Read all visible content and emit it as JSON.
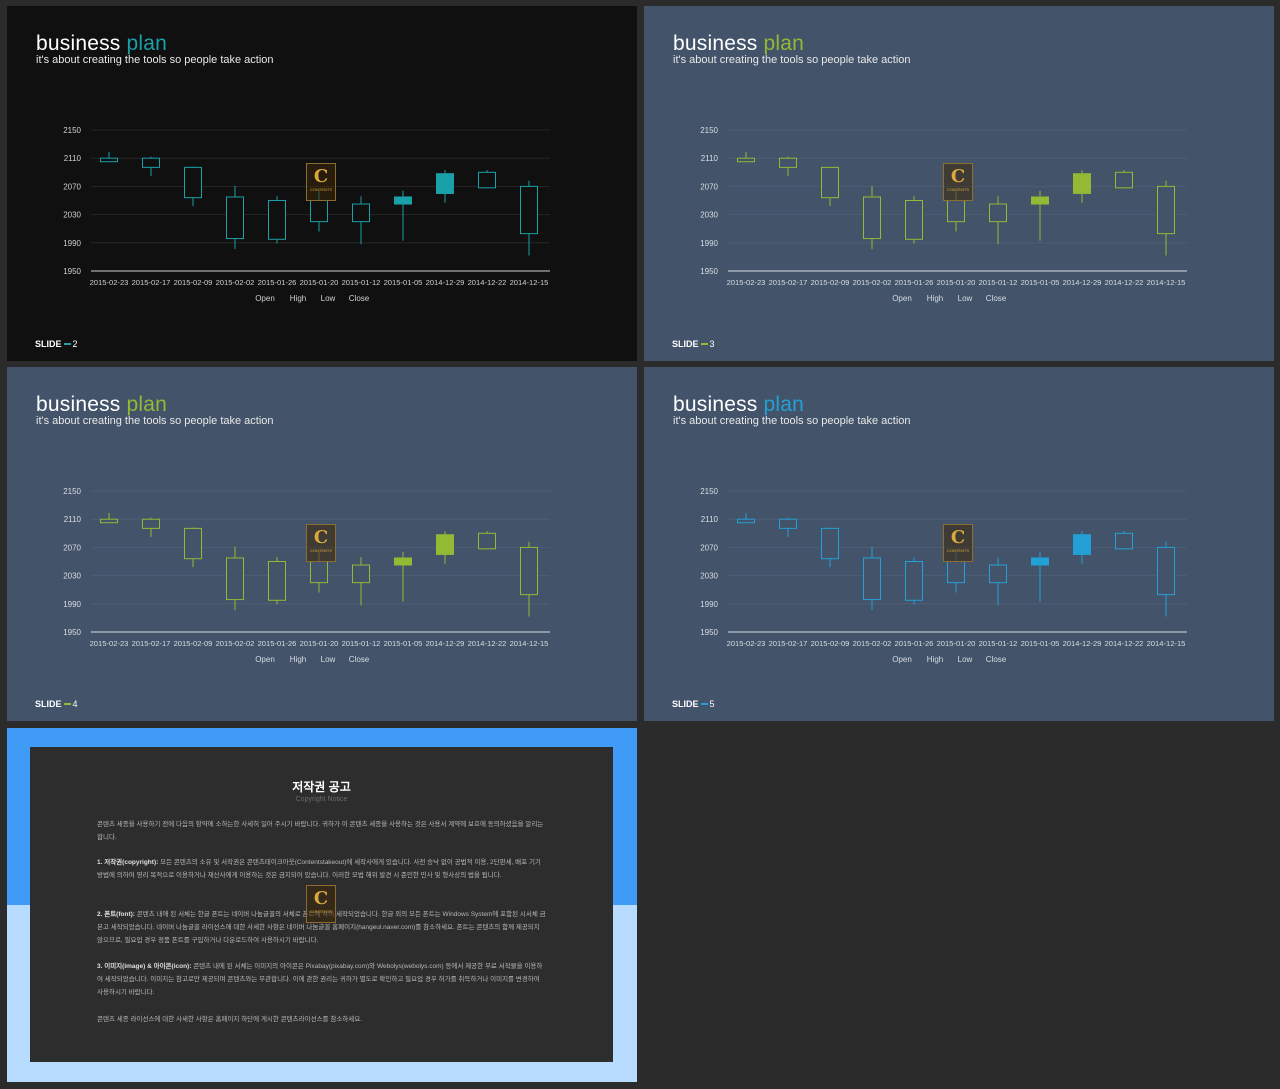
{
  "slides": [
    {
      "theme": {
        "bg": "#101010",
        "accent": "#1aa0a8",
        "text": "#ffffff",
        "axis": "#d0d0d0",
        "grid": "#2a2a2a"
      },
      "title_word1": "business",
      "title_word2": "plan",
      "subtitle": "it's about creating the tools so people take action",
      "footer_label": "SLIDE",
      "footer_num": "2"
    },
    {
      "theme": {
        "bg": "#435369",
        "accent": "#93b935",
        "text": "#ffffff",
        "axis": "#d8dde4",
        "grid": "#51607a"
      },
      "title_word1": "business",
      "title_word2": "plan",
      "subtitle": "it's about creating the tools so people take action",
      "footer_label": "SLIDE",
      "footer_num": "3"
    },
    {
      "theme": {
        "bg": "#435369",
        "accent": "#93b935",
        "text": "#ffffff",
        "axis": "#d8dde4",
        "grid": "#51607a"
      },
      "title_word1": "business",
      "title_word2": "plan",
      "subtitle": "it's about creating the tools so people take action",
      "footer_label": "SLIDE",
      "footer_num": "4"
    },
    {
      "theme": {
        "bg": "#435369",
        "accent": "#23a0d6",
        "text": "#ffffff",
        "axis": "#d8dde4",
        "grid": "#51607a"
      },
      "title_word1": "business",
      "title_word2": "plan",
      "subtitle": "it's about creating the tools so people take action",
      "footer_label": "SLIDE",
      "footer_num": "5"
    }
  ],
  "logo": {
    "letter": "C",
    "text": "CONTENTS"
  },
  "chart_data": {
    "type": "candlestick",
    "categories": [
      "2015-02-23",
      "2015-02-17",
      "2015-02-09",
      "2015-02-02",
      "2015-01-26",
      "2015-01-20",
      "2015-01-12",
      "2015-01-05",
      "2014-12-29",
      "2014-12-22",
      "2014-12-15"
    ],
    "series": [
      {
        "name": "Open",
        "values": [
          2110,
          2110,
          2097,
          2055,
          2050,
          2050,
          2045,
          2045,
          2060,
          2090,
          2070
        ]
      },
      {
        "name": "High",
        "values": [
          2119,
          2112,
          2098,
          2071,
          2056,
          2064,
          2056,
          2064,
          2093,
          2093,
          2078
        ]
      },
      {
        "name": "Low",
        "values": [
          2105,
          2085,
          2042,
          1981,
          1989,
          2006,
          1988,
          1993,
          2047,
          2067,
          1972
        ]
      },
      {
        "name": "Close",
        "values": [
          2105,
          2097,
          2054,
          1996,
          1995,
          2020,
          2020,
          2055,
          2088,
          2068,
          2003
        ]
      }
    ],
    "ylim": [
      1950,
      2150
    ],
    "yticks": [
      "2150",
      "2110",
      "2070",
      "2030",
      "1990",
      "1950"
    ],
    "legend": [
      "Open",
      "High",
      "Low",
      "Close"
    ],
    "legend_position": "bottom",
    "grid": true
  },
  "notice": {
    "band_top_color": "#3f9bf5",
    "band_bottom_color": "#b7dcff",
    "title": "저작권 공고",
    "subtitle": "Copyright Notice",
    "intro": "콘텐츠 세종을 사용하기 전에 다음의 항약에 소하는한 사세히 일어 주시기 바랍니다. 귀하가 이 콘텐츠 세종을 사용하는 것은 사용서 계약에 보호에 동의하셨음을 알리는 합니다.",
    "s1_head": "1. 저작권(copyright):",
    "s1_body": "모든 콘텐츠의 소유 및 서작권은 콘텐츠테이크아웃(Contentstakeout)에 세작사에게 있습니다. 사전 승낙 없이 공법적 이용, 2단판세, 배포 기기 방법에 의하여 영리 목적으로 이용하거나 재산사에게 이용하는 것은 금지되어 있습니다. 이러한 모법 해위 발견 시 준민한 민사 및 형사상의 법을 됩니다.",
    "s2_head": "2. 폰트(font):",
    "s2_body": "콘텐츠 내에 된 서체는 한글 폰트는 네이버 나눔글꼴의 서체로 폰트에 사이 세작되었습니다. 한글 외의 모든 폰트는 Windows System에 포함된 시서체 금본고 세작되었습니다. 네이버 나눔글꼴 라이선스에 대한 사세한 사항은 네이버 나눔글꼴 홈페이지(hangeul.naver.com)를 참소하세요. 폰트는 콘텐츠의 함께 제공되지 않으므로, 필요업 경우 정품 폰트를 구입하거나 다운로드하여 사용하시기 바랍니다.",
    "s3_head": "3. 이미지(image) & 아이콘(icon):",
    "s3_body": "콘텐츠 내에 된 서체는 이미지의 아이콘은 Pixabay(pixabay.com)와 Webolys(webolys.com) 등에서 제공한 무료 서작물을 이용하여 세작되었습니다. 이미지는 참고로만 제공되며 콘텐츠와는 무관합니다. 이에 관한 권리는 귀하가 별도로 확인하고 필요업 경우 허가를 취득하거나 이미지를 변경하여 사용하시기 바랍니다.",
    "closing": "콘텐츠 세종 라이선스에 대한 사세한 사항은 홈페이지 하단에 게시한 콘텐츠라이선스를 참소하세요."
  }
}
